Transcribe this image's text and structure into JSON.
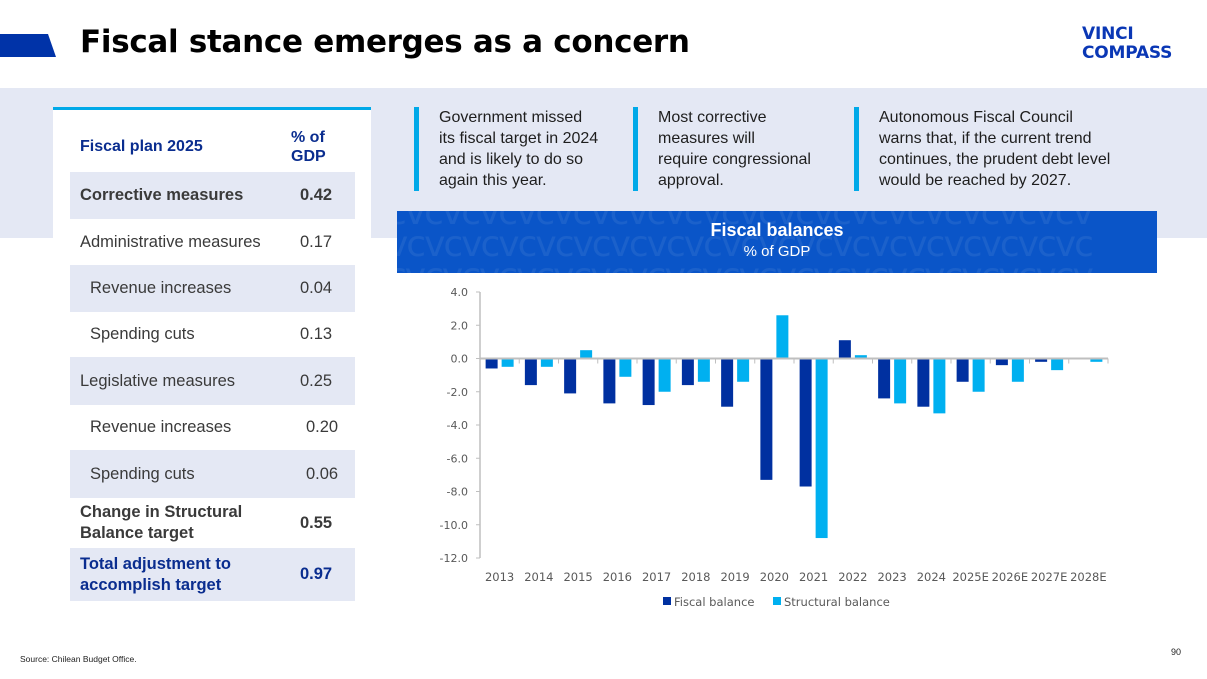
{
  "header": {
    "title": "Fiscal stance emerges as a concern",
    "logo_line1": "VINCI",
    "logo_line2": "COMPASS"
  },
  "table": {
    "title": "Fiscal plan 2025",
    "column_header_line1": "% of",
    "column_header_line2": "GDP",
    "rows": [
      {
        "label": "Corrective measures",
        "value": "0.42"
      },
      {
        "label": "Administrative measures",
        "value": "0.17"
      },
      {
        "label": "Revenue increases",
        "value": "0.04"
      },
      {
        "label": "Spending cuts",
        "value": "0.13"
      },
      {
        "label": "Legislative measures",
        "value": "0.25"
      },
      {
        "label": "Revenue increases",
        "value": "0.20"
      },
      {
        "label": "Spending cuts",
        "value": "0.06"
      },
      {
        "label_line1": "Change in Structural",
        "label_line2": "Balance target",
        "value": "0.55"
      },
      {
        "label_line1": "Total adjustment to",
        "label_line2": "accomplish target",
        "value": "0.97"
      }
    ]
  },
  "notes": [
    {
      "lines": [
        "Government missed",
        "its fiscal target in 2024",
        "and is likely to do so",
        "again this year."
      ]
    },
    {
      "lines": [
        "Most corrective",
        "measures will",
        "require congressional",
        "approval."
      ]
    },
    {
      "lines": [
        "Autonomous Fiscal Council",
        "warns that, if the current trend",
        "continues, the prudent debt level",
        "would be reached by 2027."
      ]
    }
  ],
  "colors": {
    "brand_blue": "#0033a8",
    "accent_cyan": "#00a9e8",
    "fiscal_balance": "#0030a0",
    "structural_balance": "#00b0f0",
    "band_bg": "#e4e8f4"
  },
  "chart_data": {
    "type": "bar",
    "title": "Fiscal balances",
    "subtitle": "% of GDP",
    "xlabel": "",
    "ylabel": "",
    "categories": [
      "2013",
      "2014",
      "2015",
      "2016",
      "2017",
      "2018",
      "2019",
      "2020",
      "2021",
      "2022",
      "2023",
      "2024",
      "2025E",
      "2026E",
      "2027E",
      "2028E"
    ],
    "series": [
      {
        "name": "Fiscal balance",
        "values": [
          -0.6,
          -1.6,
          -2.1,
          -2.7,
          -2.8,
          -1.6,
          -2.9,
          -7.3,
          -7.7,
          1.1,
          -2.4,
          -2.9,
          -1.4,
          -0.4,
          -0.2,
          -0.05
        ]
      },
      {
        "name": "Structural balance",
        "values": [
          -0.5,
          -0.5,
          0.5,
          -1.1,
          -2.0,
          -1.4,
          -1.4,
          2.6,
          -10.8,
          0.2,
          -2.7,
          -3.3,
          -2.0,
          -1.4,
          -0.7,
          -0.2
        ]
      }
    ],
    "ylim": [
      -12.0,
      4.0
    ],
    "yticks": [
      "4.0",
      "2.0",
      "0.0",
      "-2.0",
      "-4.0",
      "-6.0",
      "-8.0",
      "-10.0",
      "-12.0"
    ],
    "ytick_values": [
      4,
      2,
      0,
      -2,
      -4,
      -6,
      -8,
      -10,
      -12
    ],
    "grid": false,
    "legend_position": "bottom"
  },
  "footer": {
    "source": "Source: Chilean Budget Office.",
    "page_number": "90"
  }
}
